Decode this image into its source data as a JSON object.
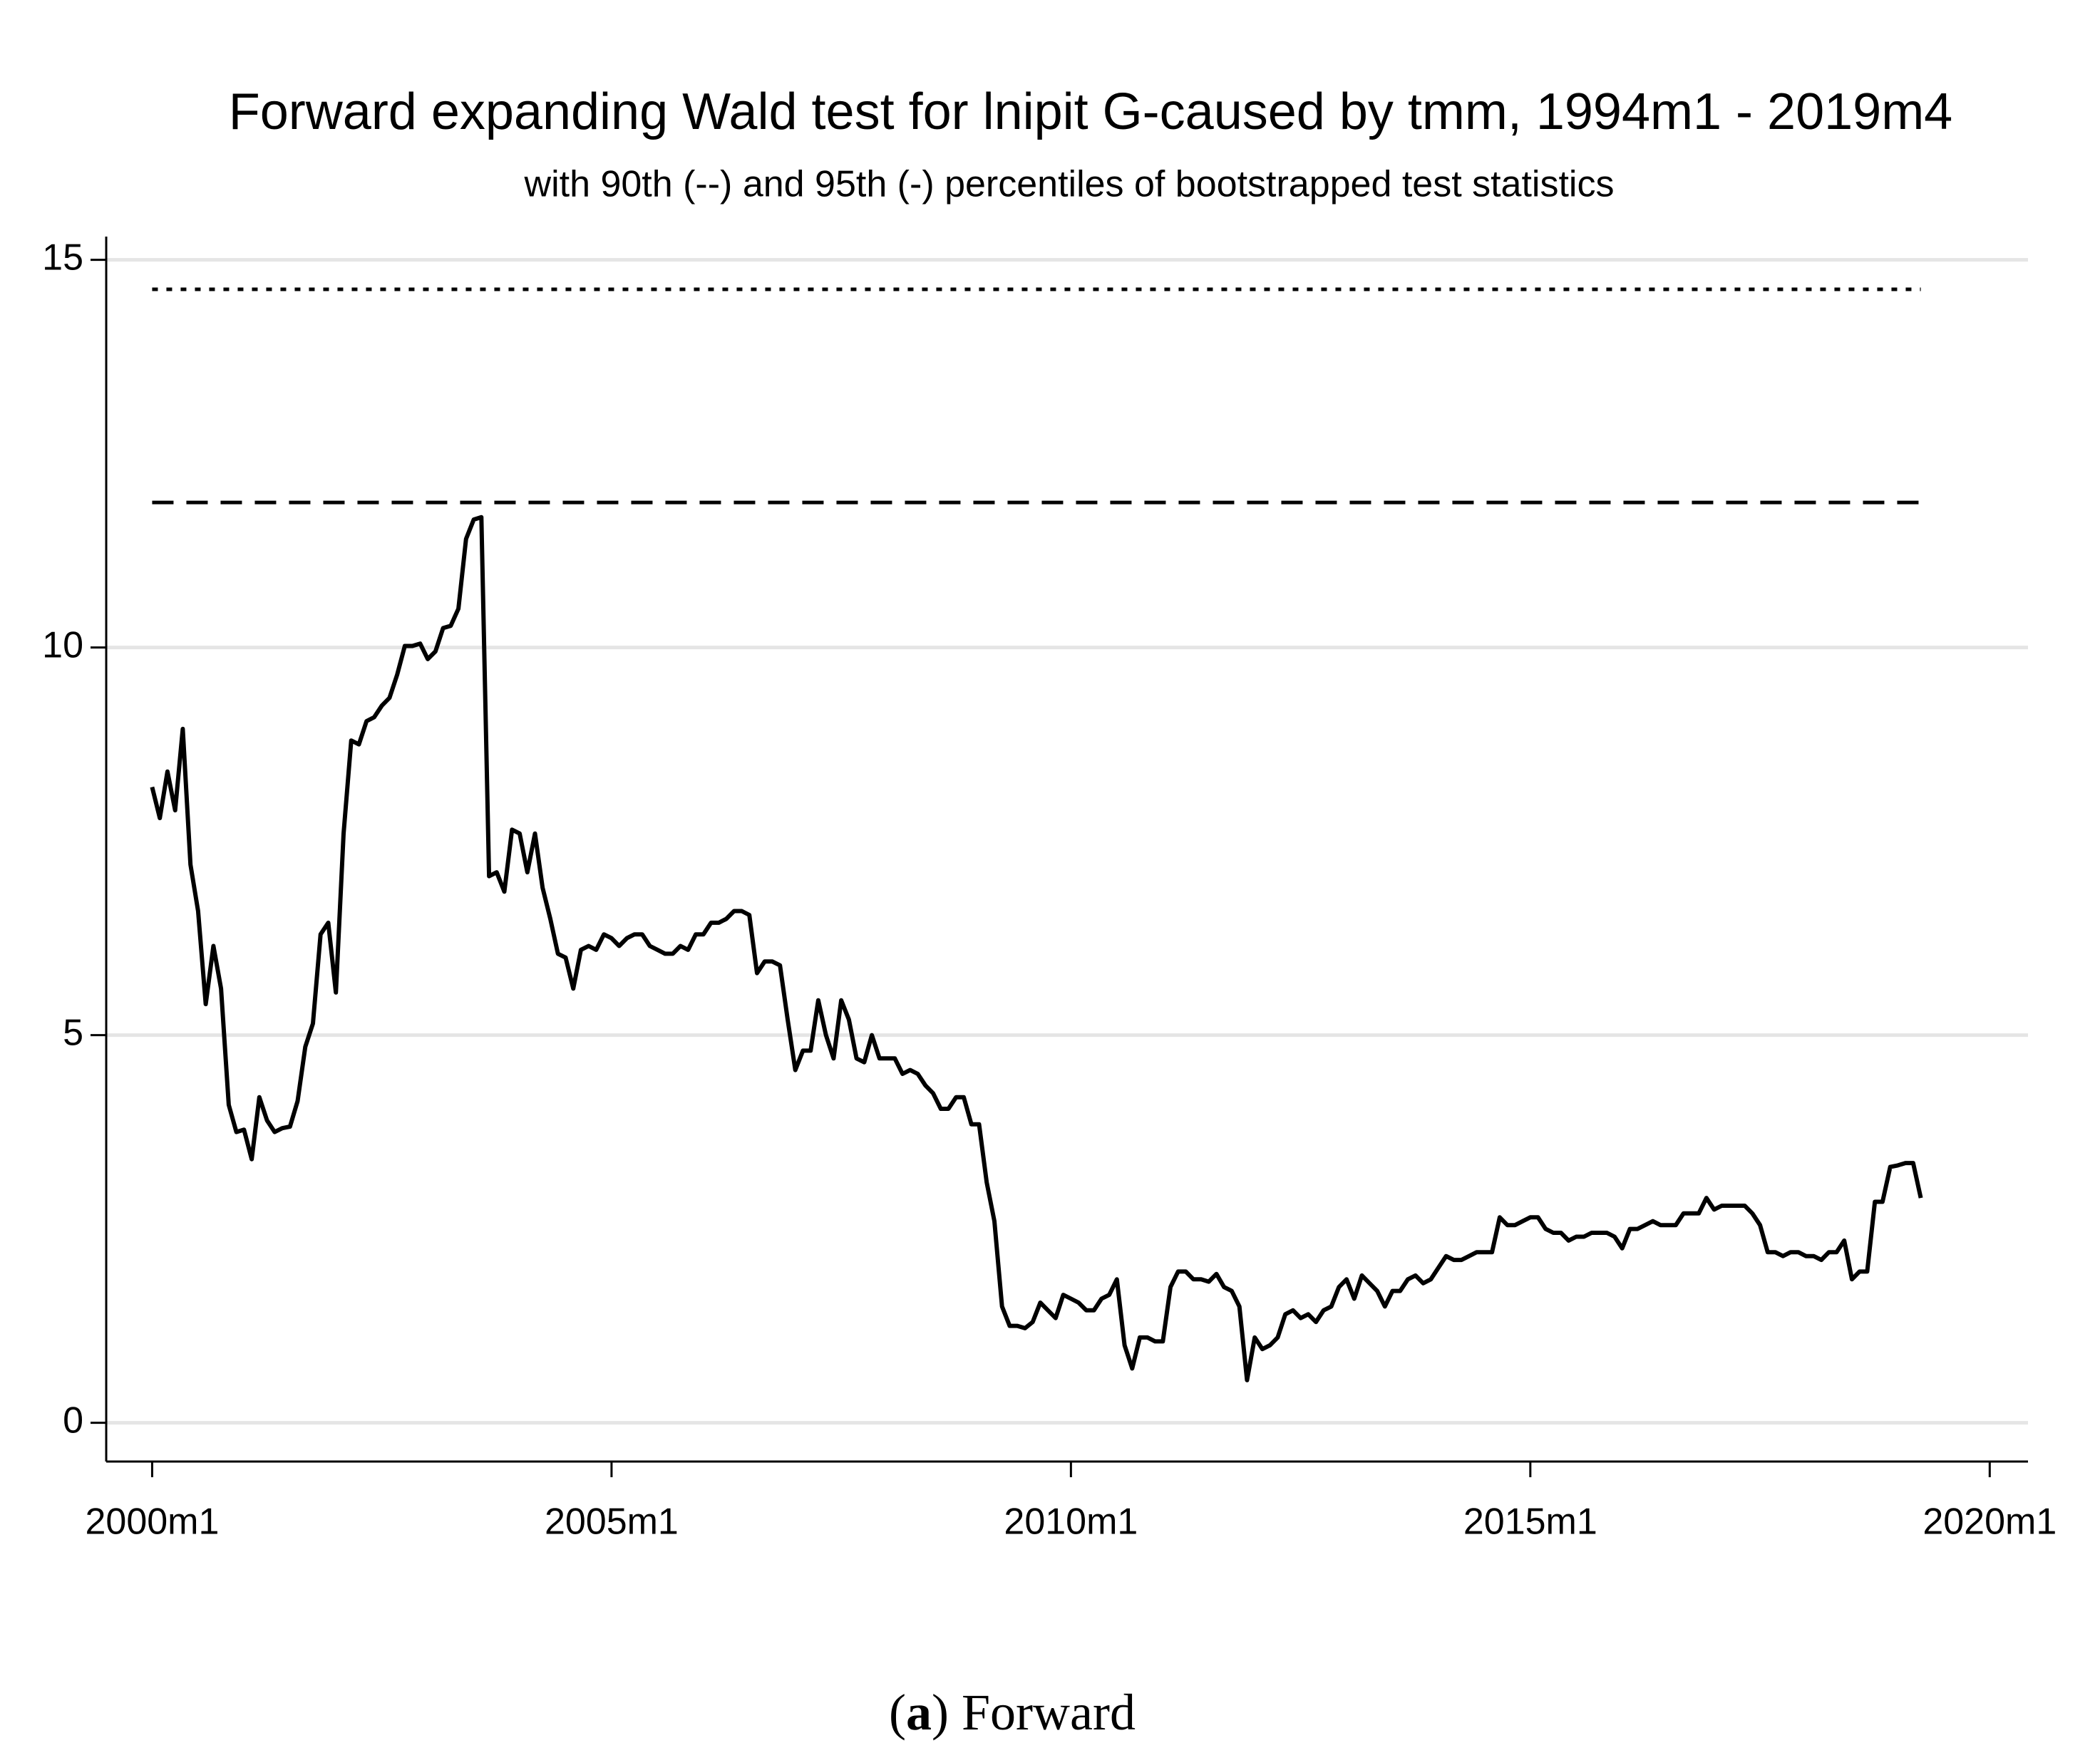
{
  "chart_data": {
    "type": "line",
    "title": "Forward expanding Wald test for lnipit G-caused by tmm, 1994m1 - 2019m4",
    "subtitle": "with 90th (--) and 95th (-) percentiles of bootstrapped test statistics",
    "caption": [
      "(",
      "a",
      ") Forward"
    ],
    "x": [
      "2000m1",
      "2000m2",
      "2000m3",
      "2000m4",
      "2000m5",
      "2000m6",
      "2000m7",
      "2000m8",
      "2000m9",
      "2000m10",
      "2000m11",
      "2000m12",
      "2001m1",
      "2001m2",
      "2001m3",
      "2001m4",
      "2001m5",
      "2001m6",
      "2001m7",
      "2001m8",
      "2001m9",
      "2001m10",
      "2001m11",
      "2001m12",
      "2002m1",
      "2002m2",
      "2002m3",
      "2002m4",
      "2002m5",
      "2002m6",
      "2002m7",
      "2002m8",
      "2002m9",
      "2002m10",
      "2002m11",
      "2002m12",
      "2003m1",
      "2003m2",
      "2003m3",
      "2003m4",
      "2003m5",
      "2003m6",
      "2003m7",
      "2003m8",
      "2003m9",
      "2003m10",
      "2003m11",
      "2003m12",
      "2004m1",
      "2004m2",
      "2004m3",
      "2004m4",
      "2004m5",
      "2004m6",
      "2004m7",
      "2004m8",
      "2004m9",
      "2004m10",
      "2004m11",
      "2004m12",
      "2005m1",
      "2005m2",
      "2005m3",
      "2005m4",
      "2005m5",
      "2005m6",
      "2005m7",
      "2005m8",
      "2005m9",
      "2005m10",
      "2005m11",
      "2005m12",
      "2006m1",
      "2006m2",
      "2006m3",
      "2006m4",
      "2006m5",
      "2006m6",
      "2006m7",
      "2006m8",
      "2006m9",
      "2006m10",
      "2006m11",
      "2006m12",
      "2007m1",
      "2007m2",
      "2007m3",
      "2007m4",
      "2007m5",
      "2007m6",
      "2007m7",
      "2007m8",
      "2007m9",
      "2007m10",
      "2007m11",
      "2007m12",
      "2008m1",
      "2008m2",
      "2008m3",
      "2008m4",
      "2008m5",
      "2008m6",
      "2008m7",
      "2008m8",
      "2008m9",
      "2008m10",
      "2008m11",
      "2008m12",
      "2009m1",
      "2009m2",
      "2009m3",
      "2009m4",
      "2009m5",
      "2009m6",
      "2009m7",
      "2009m8",
      "2009m9",
      "2009m10",
      "2009m11",
      "2009m12",
      "2010m1",
      "2010m2",
      "2010m3",
      "2010m4",
      "2010m5",
      "2010m6",
      "2010m7",
      "2010m8",
      "2010m9",
      "2010m10",
      "2010m11",
      "2010m12",
      "2011m1",
      "2011m2",
      "2011m3",
      "2011m4",
      "2011m5",
      "2011m6",
      "2011m7",
      "2011m8",
      "2011m9",
      "2011m10",
      "2011m11",
      "2011m12",
      "2012m1",
      "2012m2",
      "2012m3",
      "2012m4",
      "2012m5",
      "2012m6",
      "2012m7",
      "2012m8",
      "2012m9",
      "2012m10",
      "2012m11",
      "2012m12",
      "2013m1",
      "2013m2",
      "2013m3",
      "2013m4",
      "2013m5",
      "2013m6",
      "2013m7",
      "2013m8",
      "2013m9",
      "2013m10",
      "2013m11",
      "2013m12",
      "2014m1",
      "2014m2",
      "2014m3",
      "2014m4",
      "2014m5",
      "2014m6",
      "2014m7",
      "2014m8",
      "2014m9",
      "2014m10",
      "2014m11",
      "2014m12",
      "2015m1",
      "2015m2",
      "2015m3",
      "2015m4",
      "2015m5",
      "2015m6",
      "2015m7",
      "2015m8",
      "2015m9",
      "2015m10",
      "2015m11",
      "2015m12",
      "2016m1",
      "2016m2",
      "2016m3",
      "2016m4",
      "2016m5",
      "2016m6",
      "2016m7",
      "2016m8",
      "2016m9",
      "2016m10",
      "2016m11",
      "2016m12",
      "2017m1",
      "2017m2",
      "2017m3",
      "2017m4",
      "2017m5",
      "2017m6",
      "2017m7",
      "2017m8",
      "2017m9",
      "2017m10",
      "2017m11",
      "2017m12",
      "2018m1",
      "2018m2",
      "2018m3",
      "2018m4",
      "2018m5",
      "2018m6",
      "2018m7",
      "2018m8",
      "2018m9",
      "2018m10",
      "2018m11",
      "2018m12",
      "2019m1",
      "2019m2",
      "2019m3",
      "2019m4"
    ],
    "values": [
      8.2,
      7.8,
      8.4,
      7.9,
      8.95,
      7.2,
      6.6,
      5.4,
      6.15,
      5.6,
      4.1,
      3.75,
      3.78,
      3.4,
      4.2,
      3.9,
      3.75,
      3.8,
      3.82,
      4.15,
      4.85,
      5.15,
      6.3,
      6.45,
      5.55,
      7.6,
      8.8,
      8.75,
      9.05,
      9.1,
      9.25,
      9.35,
      9.65,
      10.02,
      10.02,
      10.05,
      9.85,
      9.95,
      10.25,
      10.28,
      10.5,
      11.4,
      11.65,
      11.68,
      7.05,
      7.1,
      6.85,
      7.65,
      7.6,
      7.1,
      7.6,
      6.9,
      6.5,
      6.05,
      6.0,
      5.6,
      6.1,
      6.15,
      6.1,
      6.3,
      6.25,
      6.15,
      6.25,
      6.3,
      6.3,
      6.15,
      6.1,
      6.05,
      6.05,
      6.15,
      6.1,
      6.3,
      6.3,
      6.45,
      6.45,
      6.5,
      6.6,
      6.6,
      6.55,
      5.8,
      5.95,
      5.95,
      5.9,
      5.2,
      4.55,
      4.8,
      4.8,
      5.45,
      5.0,
      4.7,
      5.45,
      5.2,
      4.7,
      4.65,
      5.0,
      4.7,
      4.7,
      4.7,
      4.5,
      4.55,
      4.5,
      4.35,
      4.25,
      4.05,
      4.05,
      4.2,
      4.2,
      3.85,
      3.85,
      3.1,
      2.6,
      1.5,
      1.25,
      1.25,
      1.22,
      1.3,
      1.55,
      1.45,
      1.35,
      1.65,
      1.6,
      1.55,
      1.45,
      1.45,
      1.6,
      1.65,
      1.85,
      1.0,
      0.7,
      1.1,
      1.1,
      1.05,
      1.05,
      1.75,
      1.95,
      1.95,
      1.85,
      1.85,
      1.82,
      1.92,
      1.75,
      1.7,
      1.5,
      0.55,
      1.1,
      0.95,
      1.0,
      1.1,
      1.4,
      1.45,
      1.35,
      1.4,
      1.3,
      1.45,
      1.5,
      1.75,
      1.85,
      1.6,
      1.9,
      1.8,
      1.7,
      1.5,
      1.7,
      1.7,
      1.85,
      1.9,
      1.8,
      1.85,
      2.0,
      2.15,
      2.1,
      2.1,
      2.15,
      2.2,
      2.2,
      2.2,
      2.65,
      2.55,
      2.55,
      2.6,
      2.65,
      2.65,
      2.5,
      2.45,
      2.45,
      2.35,
      2.4,
      2.4,
      2.45,
      2.45,
      2.45,
      2.4,
      2.25,
      2.5,
      2.5,
      2.55,
      2.6,
      2.55,
      2.55,
      2.55,
      2.7,
      2.7,
      2.7,
      2.9,
      2.75,
      2.8,
      2.8,
      2.8,
      2.8,
      2.7,
      2.55,
      2.2,
      2.2,
      2.15,
      2.2,
      2.2,
      2.15,
      2.15,
      2.1,
      2.2,
      2.2,
      2.35,
      1.85,
      1.95,
      1.95,
      2.85,
      2.85,
      3.3,
      3.32,
      3.35,
      3.35,
      2.9
    ],
    "color": "#000000",
    "hlines": [
      {
        "value": 11.87,
        "dash": "dashed"
      },
      {
        "value": 14.62,
        "dash": "dotted"
      }
    ],
    "xlim": [
      "1999m7",
      "2020m6"
    ],
    "xticks": [
      "2000m1",
      "2005m1",
      "2010m1",
      "2015m1",
      "2020m1"
    ],
    "ylim": [
      -0.5,
      15.3
    ],
    "yticks": [
      0,
      5,
      10,
      15
    ],
    "grid": true
  }
}
